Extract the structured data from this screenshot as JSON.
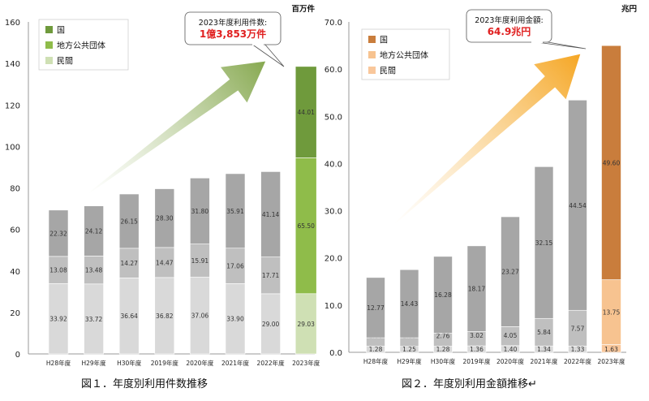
{
  "chart_data": [
    {
      "type": "bar",
      "stacked": true,
      "unit": "百万件",
      "categories": [
        "H28年度",
        "H29年度",
        "H30年度",
        "2019年度",
        "2020年度",
        "2021年度",
        "2022年度",
        "2023年度"
      ],
      "series": [
        {
          "name": "民間",
          "values": [
            33.92,
            33.72,
            36.64,
            36.82,
            37.06,
            33.9,
            29.0,
            29.03
          ],
          "color": "#d9d9d9",
          "color_2023": "#cfe0b4"
        },
        {
          "name": "地方公共団体",
          "values": [
            13.08,
            13.48,
            14.27,
            14.47,
            15.91,
            17.06,
            17.71,
            65.5
          ],
          "color": "#bfbfbf",
          "color_2023": "#8fbc4a"
        },
        {
          "name": "国",
          "values": [
            22.32,
            24.12,
            26.15,
            28.3,
            31.8,
            35.91,
            41.14,
            44.01
          ],
          "color": "#a6a6a6",
          "color_2023": "#6f9a3c"
        }
      ],
      "ylim": [
        0,
        160
      ],
      "yticks": [
        0,
        20,
        40,
        60,
        80,
        100,
        120,
        140,
        160
      ],
      "callout": {
        "line1": "2023年度利用件数:",
        "line2": "1億3,853万件"
      },
      "caption": "図１．年度別利用件数推移",
      "arrow_color": "#86a84f",
      "legend_position": "top-left"
    },
    {
      "type": "bar",
      "stacked": true,
      "unit": "兆円",
      "categories": [
        "H28年度",
        "H29年度",
        "H30年度",
        "2019年度",
        "2020年度",
        "2021年度",
        "2022年度",
        "2023年度"
      ],
      "series": [
        {
          "name": "民間",
          "values": [
            1.28,
            1.25,
            1.28,
            1.36,
            1.4,
            1.34,
            1.33,
            1.63
          ],
          "color": "#d9d9d9",
          "color_2023": "#f9c79b"
        },
        {
          "name": "地方公共団体",
          "values": [
            1.8,
            1.83,
            2.76,
            3.02,
            4.05,
            5.84,
            7.57,
            13.75
          ],
          "color": "#bfbfbf",
          "color_2023": "#f7c390"
        },
        {
          "name": "国",
          "values": [
            12.77,
            14.43,
            16.28,
            18.17,
            23.27,
            32.15,
            44.54,
            49.6
          ],
          "color": "#a6a6a6",
          "color_2023": "#c97d3c"
        }
      ],
      "ylim": [
        0,
        70
      ],
      "yticks": [
        "0.0",
        "10.0",
        "20.0",
        "30.0",
        "40.0",
        "50.0",
        "60.0",
        "70.0"
      ],
      "callout": {
        "line1": "2023年度利用金額:",
        "line2": "64.9兆円"
      },
      "caption": "図２．年度別利用金額推移↵",
      "arrow_color": "#f5a623",
      "legend_position": "top-left"
    }
  ]
}
